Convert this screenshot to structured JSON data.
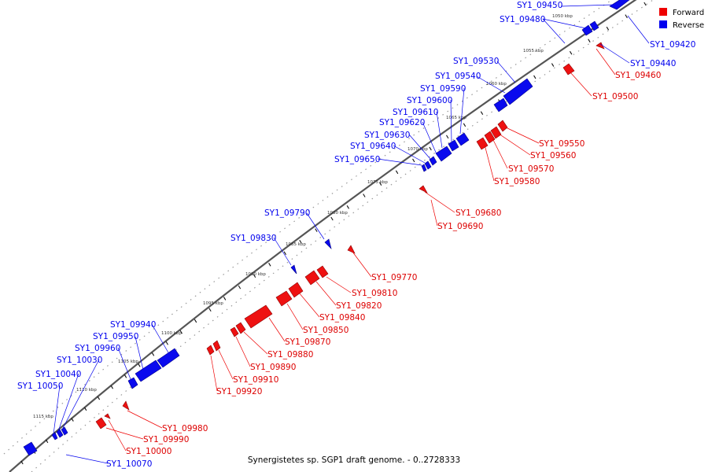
{
  "caption": "Synergistetes sp. SGP1 draft genome. - 0..2728333",
  "legend": {
    "forward_label": "Forward",
    "reverse_label": "Reverse",
    "forward_color": "#ee0000",
    "reverse_color": "#0000ee"
  },
  "scale": {
    "tick_labels": [
      "1050 kbp",
      "1055 kbp",
      "1060 kbp",
      "1065 kbp",
      "1070 kbp",
      "1075 kbp",
      "1080 kbp",
      "1085 kbp",
      "1090 kbp",
      "1095 kbp",
      "1100 kbp",
      "1105 kbp",
      "1110 kbp",
      "1115 kbp"
    ]
  },
  "genes": {
    "reverse": [
      "SY1_09450",
      "SY1_09480",
      "SY1_09420",
      "SY1_09440",
      "SY1_09530",
      "SY1_09540",
      "SY1_09590",
      "SY1_09600",
      "SY1_09610",
      "SY1_09620",
      "SY1_09630",
      "SY1_09640",
      "SY1_09650",
      "SY1_09790",
      "SY1_09830",
      "SY1_09940",
      "SY1_09950",
      "SY1_09960",
      "SY1_10030",
      "SY1_10040",
      "SY1_10050",
      "SY1_10070"
    ],
    "forward": [
      "SY1_09460",
      "SY1_09500",
      "SY1_09550",
      "SY1_09560",
      "SY1_09570",
      "SY1_09580",
      "SY1_09680",
      "SY1_09690",
      "SY1_09770",
      "SY1_09810",
      "SY1_09820",
      "SY1_09840",
      "SY1_09850",
      "SY1_09870",
      "SY1_09880",
      "SY1_09890",
      "SY1_09910",
      "SY1_09920",
      "SY1_09980",
      "SY1_09990",
      "SY1_10000"
    ]
  }
}
